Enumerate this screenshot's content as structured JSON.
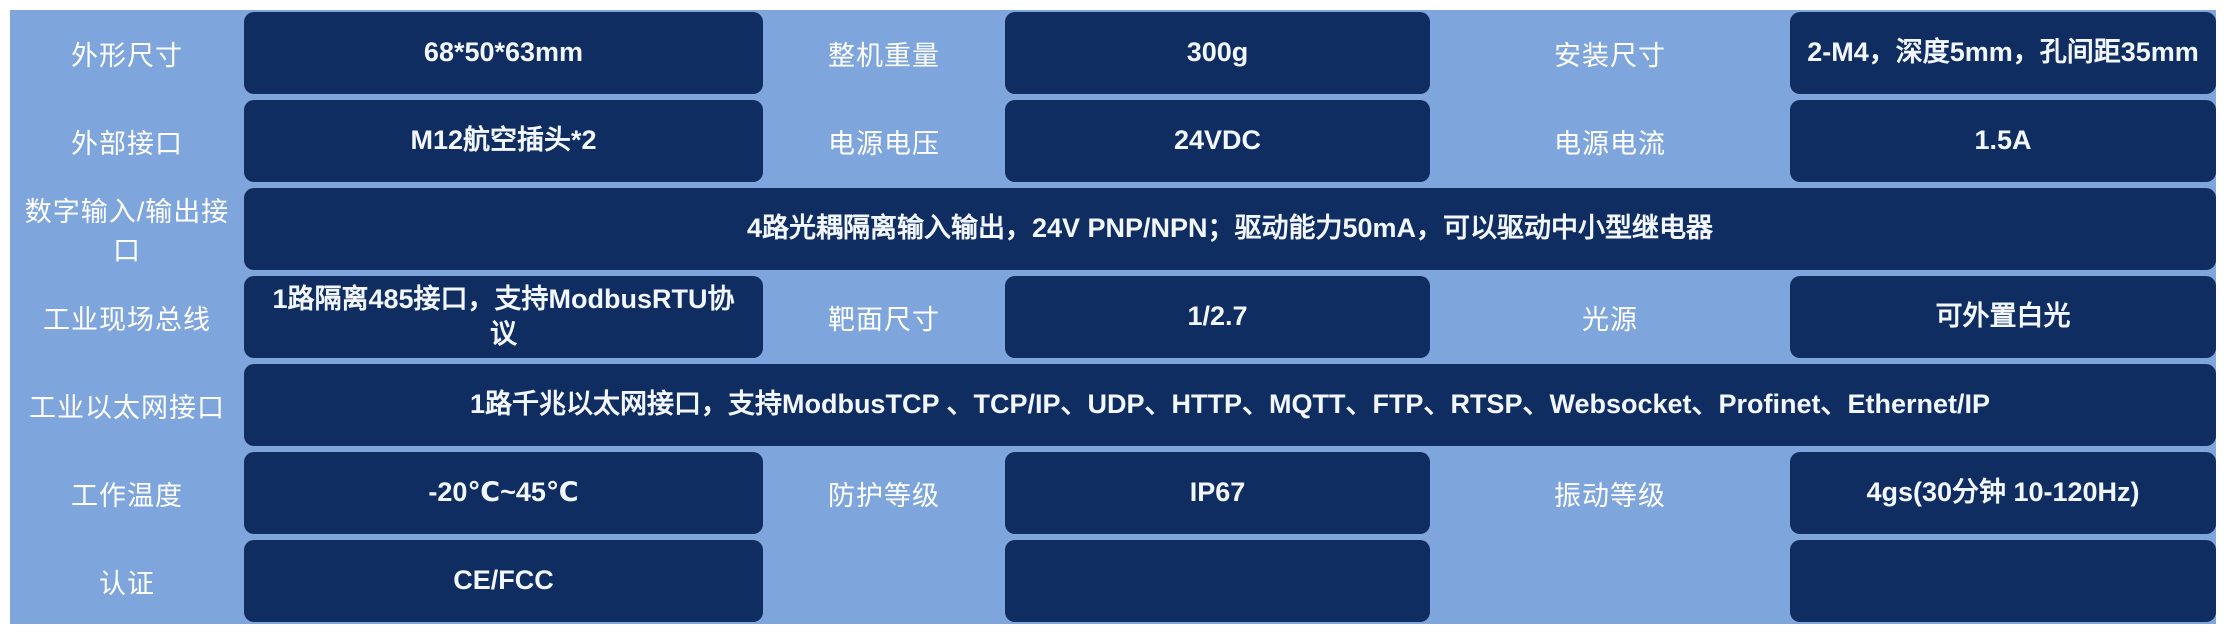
{
  "spec_table": {
    "rows": [
      {
        "a": "外形尺寸",
        "b": "68*50*63mm",
        "c": "整机重量",
        "d": "300g",
        "e": "安装尺寸",
        "f": "2-M4，深度5mm，孔间距35mm"
      },
      {
        "a": "外部接口",
        "b": "M12航空插头*2",
        "c": "电源电压",
        "d": "24VDC",
        "e": "电源电流",
        "f": "1.5A"
      },
      {
        "a": "数字输入/输出接口",
        "span": "4路光耦隔离输入输出，24V PNP/NPN；驱动能力50mA，可以驱动中小型继电器"
      },
      {
        "a": "工业现场总线",
        "b": "1路隔离485接口，支持ModbusRTU协议",
        "c": "靶面尺寸",
        "d": "1/2.7",
        "e": "光源",
        "f": "可外置白光"
      },
      {
        "a": "工业以太网接口",
        "span": "1路千兆以太网接口，支持ModbusTCP 、TCP/IP、UDP、HTTP、MQTT、FTP、RTSP、Websocket、Profinet、Ethernet/IP"
      },
      {
        "a": "工作温度",
        "b": "-20℃~45℃",
        "c": "防护等级",
        "d": "IP67",
        "e": "振动等级",
        "f": "4gs(30分钟 10-120Hz)"
      },
      {
        "a": "认证",
        "b": "CE/FCC",
        "c": "",
        "d": "",
        "e": "",
        "f": ""
      }
    ]
  },
  "colors": {
    "page_background": "#ffffff",
    "panel_background": "#7fa6dc",
    "cell_background": "#0f2d60",
    "label_text": "#ffffff",
    "value_text": "#f2f7ff"
  }
}
